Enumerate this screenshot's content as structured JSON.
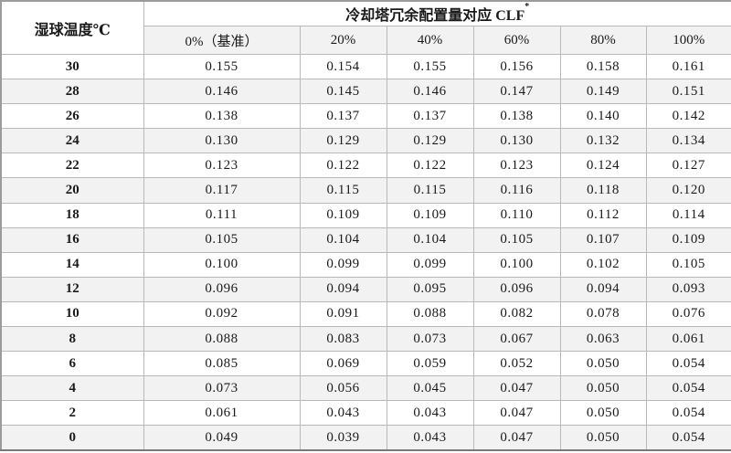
{
  "table": {
    "corner_header": "湿球温度℃",
    "group_header": "冷却塔冗余配置量对应 CLF",
    "group_header_sup": "*",
    "col_headers": [
      "0%（基准）",
      "20%",
      "40%",
      "60%",
      "80%",
      "100%"
    ],
    "rows": [
      {
        "temp": "30",
        "values": [
          "0.155",
          "0.154",
          "0.155",
          "0.156",
          "0.158",
          "0.161"
        ]
      },
      {
        "temp": "28",
        "values": [
          "0.146",
          "0.145",
          "0.146",
          "0.147",
          "0.149",
          "0.151"
        ]
      },
      {
        "temp": "26",
        "values": [
          "0.138",
          "0.137",
          "0.137",
          "0.138",
          "0.140",
          "0.142"
        ]
      },
      {
        "temp": "24",
        "values": [
          "0.130",
          "0.129",
          "0.129",
          "0.130",
          "0.132",
          "0.134"
        ]
      },
      {
        "temp": "22",
        "values": [
          "0.123",
          "0.122",
          "0.122",
          "0.123",
          "0.124",
          "0.127"
        ]
      },
      {
        "temp": "20",
        "values": [
          "0.117",
          "0.115",
          "0.115",
          "0.116",
          "0.118",
          "0.120"
        ]
      },
      {
        "temp": "18",
        "values": [
          "0.111",
          "0.109",
          "0.109",
          "0.110",
          "0.112",
          "0.114"
        ]
      },
      {
        "temp": "16",
        "values": [
          "0.105",
          "0.104",
          "0.104",
          "0.105",
          "0.107",
          "0.109"
        ]
      },
      {
        "temp": "14",
        "values": [
          "0.100",
          "0.099",
          "0.099",
          "0.100",
          "0.102",
          "0.105"
        ]
      },
      {
        "temp": "12",
        "values": [
          "0.096",
          "0.094",
          "0.095",
          "0.096",
          "0.094",
          "0.093"
        ]
      },
      {
        "temp": "10",
        "values": [
          "0.092",
          "0.091",
          "0.088",
          "0.082",
          "0.078",
          "0.076"
        ]
      },
      {
        "temp": "8",
        "values": [
          "0.088",
          "0.083",
          "0.073",
          "0.067",
          "0.063",
          "0.061"
        ]
      },
      {
        "temp": "6",
        "values": [
          "0.085",
          "0.069",
          "0.059",
          "0.052",
          "0.050",
          "0.054"
        ]
      },
      {
        "temp": "4",
        "values": [
          "0.073",
          "0.056",
          "0.045",
          "0.047",
          "0.050",
          "0.054"
        ]
      },
      {
        "temp": "2",
        "values": [
          "0.061",
          "0.043",
          "0.043",
          "0.047",
          "0.050",
          "0.054"
        ]
      },
      {
        "temp": "0",
        "values": [
          "0.049",
          "0.039",
          "0.043",
          "0.047",
          "0.050",
          "0.054"
        ]
      }
    ],
    "colors": {
      "stripe": "#f2f2f2",
      "border_inner": "#b9b9b9",
      "border_outer": "#9b9b9b"
    }
  }
}
